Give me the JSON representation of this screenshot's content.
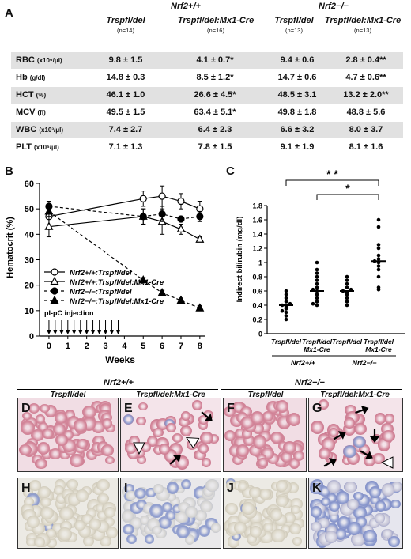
{
  "panel_labels": {
    "A": "A",
    "B": "B",
    "C": "C",
    "D": "D",
    "E": "E",
    "F": "F",
    "G": "G",
    "H": "H",
    "I": "I",
    "J": "J",
    "K": "K"
  },
  "table": {
    "group_wt": "Nrf2+/+",
    "group_ko": "Nrf2−/−",
    "columns": [
      {
        "name": "Trspfl/del",
        "n": "(n=14)"
      },
      {
        "name": "Trspfl/del:Mx1-Cre",
        "n": "(n=16)"
      },
      {
        "name": "Trspfl/del",
        "n": "(n=13)"
      },
      {
        "name": "Trspfl/del:Mx1-Cre",
        "n": "(n=13)"
      }
    ],
    "rows": [
      {
        "label": "RBC",
        "unit": "(x10⁶/μl)",
        "values": [
          "9.8 ± 1.5",
          "4.1 ± 0.7*",
          "9.4 ± 0.6",
          "2.8 ± 0.4**"
        ]
      },
      {
        "label": "Hb",
        "unit": "(g/dl)",
        "values": [
          "14.8 ± 0.3",
          "8.5 ± 1.2*",
          "14.7 ± 0.6",
          "4.7 ± 0.6**"
        ]
      },
      {
        "label": "HCT",
        "unit": "(%)",
        "values": [
          "46.1 ± 1.0",
          "26.6 ± 4.5*",
          "48.5 ± 3.1",
          "13.2 ± 2.0**"
        ]
      },
      {
        "label": "MCV",
        "unit": "(fl)",
        "values": [
          "49.5 ± 1.5",
          "63.4 ± 5.1*",
          "49.8 ± 1.8",
          "48.8 ± 5.6"
        ]
      },
      {
        "label": "WBC",
        "unit": "(x10³/μl)",
        "values": [
          "7.4 ± 2.7",
          "6.4 ± 2.3",
          "6.6 ± 3.2",
          "8.0 ± 3.7"
        ]
      },
      {
        "label": "PLT",
        "unit": "(x10⁵/μl)",
        "values": [
          "7.1 ± 1.3",
          "7.8 ± 1.5",
          "9.1 ± 1.9",
          "8.1 ± 1.6"
        ]
      }
    ]
  },
  "chart_data": [
    {
      "type": "line",
      "panel": "B",
      "xlabel": "Weeks",
      "ylabel": "Hematocrit (%)",
      "xlim": [
        -0.5,
        8.3
      ],
      "ylim": [
        0,
        60
      ],
      "xticks": [
        0,
        1,
        2,
        3,
        4,
        5,
        6,
        7,
        8
      ],
      "yticks": [
        0,
        10,
        20,
        30,
        40,
        50,
        60
      ],
      "annotation": "pI-pC injection",
      "injection_weeks": [
        0,
        0.33,
        0.67,
        1,
        1.33,
        1.67,
        2,
        2.33,
        2.67,
        3,
        3.33,
        3.67
      ],
      "series": [
        {
          "name": "Nrf2+/+:Trspfl/del",
          "marker": "open-circle",
          "dashed": false,
          "x": [
            0,
            5,
            6,
            7,
            8
          ],
          "y": [
            47,
            54,
            55,
            53,
            50
          ],
          "err": [
            4,
            3,
            4,
            3,
            3
          ]
        },
        {
          "name": "Nrf2+/+:Trspfl/del:Mx1-Cre",
          "marker": "open-triangle",
          "dashed": false,
          "x": [
            0,
            5,
            6,
            7,
            8
          ],
          "y": [
            43,
            47,
            45,
            42,
            38
          ],
          "err": [
            4,
            3,
            5,
            2,
            1
          ]
        },
        {
          "name": "Nrf2−/−:Trspfl/del",
          "marker": "filled-circle",
          "dashed": true,
          "x": [
            0,
            5,
            6,
            7,
            8
          ],
          "y": [
            51,
            47,
            48,
            46,
            47
          ],
          "err": [
            2,
            3,
            3,
            1,
            2
          ]
        },
        {
          "name": "Nrf2−/−:Trspfl/del:Mx1-Cre",
          "marker": "filled-triangle",
          "dashed": true,
          "x": [
            0,
            5,
            6,
            7,
            8
          ],
          "y": [
            49,
            22,
            17,
            14,
            11
          ],
          "err": [
            2,
            1,
            1,
            1,
            1
          ]
        }
      ]
    },
    {
      "type": "scatter",
      "panel": "C",
      "ylabel": "Indirect bilirubin  (mg/dl)",
      "ylim": [
        0,
        1.8
      ],
      "yticks": [
        "0",
        "0.2",
        "0.4",
        "0.6",
        "0.8",
        "1",
        "1.2",
        "1.4",
        "1.6",
        "1.8"
      ],
      "categories": [
        "Trspfl/del",
        "Trspfl/del Mx1-Cre",
        "Trspfl/del",
        "Trspfl/del Mx1-Cre"
      ],
      "group_labels": [
        "Nrf2+/+",
        "Nrf2−/−"
      ],
      "significance": [
        {
          "label": "* *",
          "from": 0,
          "to": 3
        },
        {
          "label": "*",
          "from": 1,
          "to": 3
        }
      ],
      "series": [
        {
          "points": [
            0.2,
            0.25,
            0.3,
            0.32,
            0.35,
            0.38,
            0.4,
            0.42,
            0.45,
            0.5,
            0.55,
            0.6
          ],
          "median": 0.4
        },
        {
          "points": [
            0.4,
            0.42,
            0.45,
            0.5,
            0.55,
            0.6,
            0.62,
            0.65,
            0.7,
            0.75,
            0.8,
            0.85,
            0.9,
            1.0
          ],
          "median": 0.6
        },
        {
          "points": [
            0.4,
            0.45,
            0.5,
            0.55,
            0.58,
            0.6,
            0.62,
            0.65,
            0.7,
            0.75,
            0.8
          ],
          "median": 0.6
        },
        {
          "points": [
            0.62,
            0.65,
            0.8,
            0.9,
            0.95,
            1.0,
            1.02,
            1.05,
            1.1,
            1.2,
            1.25,
            1.5,
            1.6
          ],
          "median": 1.02
        }
      ]
    }
  ],
  "micrographs": {
    "group_wt": "Nrf2+/+",
    "group_ko": "Nrf2−/−",
    "col_titles": [
      "Trspfl/del",
      "Trspfl/del:Mx1-Cre",
      "Trspfl/del",
      "Trspfl/del:Mx1-Cre"
    ],
    "colors": {
      "smear_bg": "#f1dde4",
      "rbc": "#d58a9d",
      "stain_bg": "#eceae4",
      "retic": "#8e9ccf"
    }
  }
}
